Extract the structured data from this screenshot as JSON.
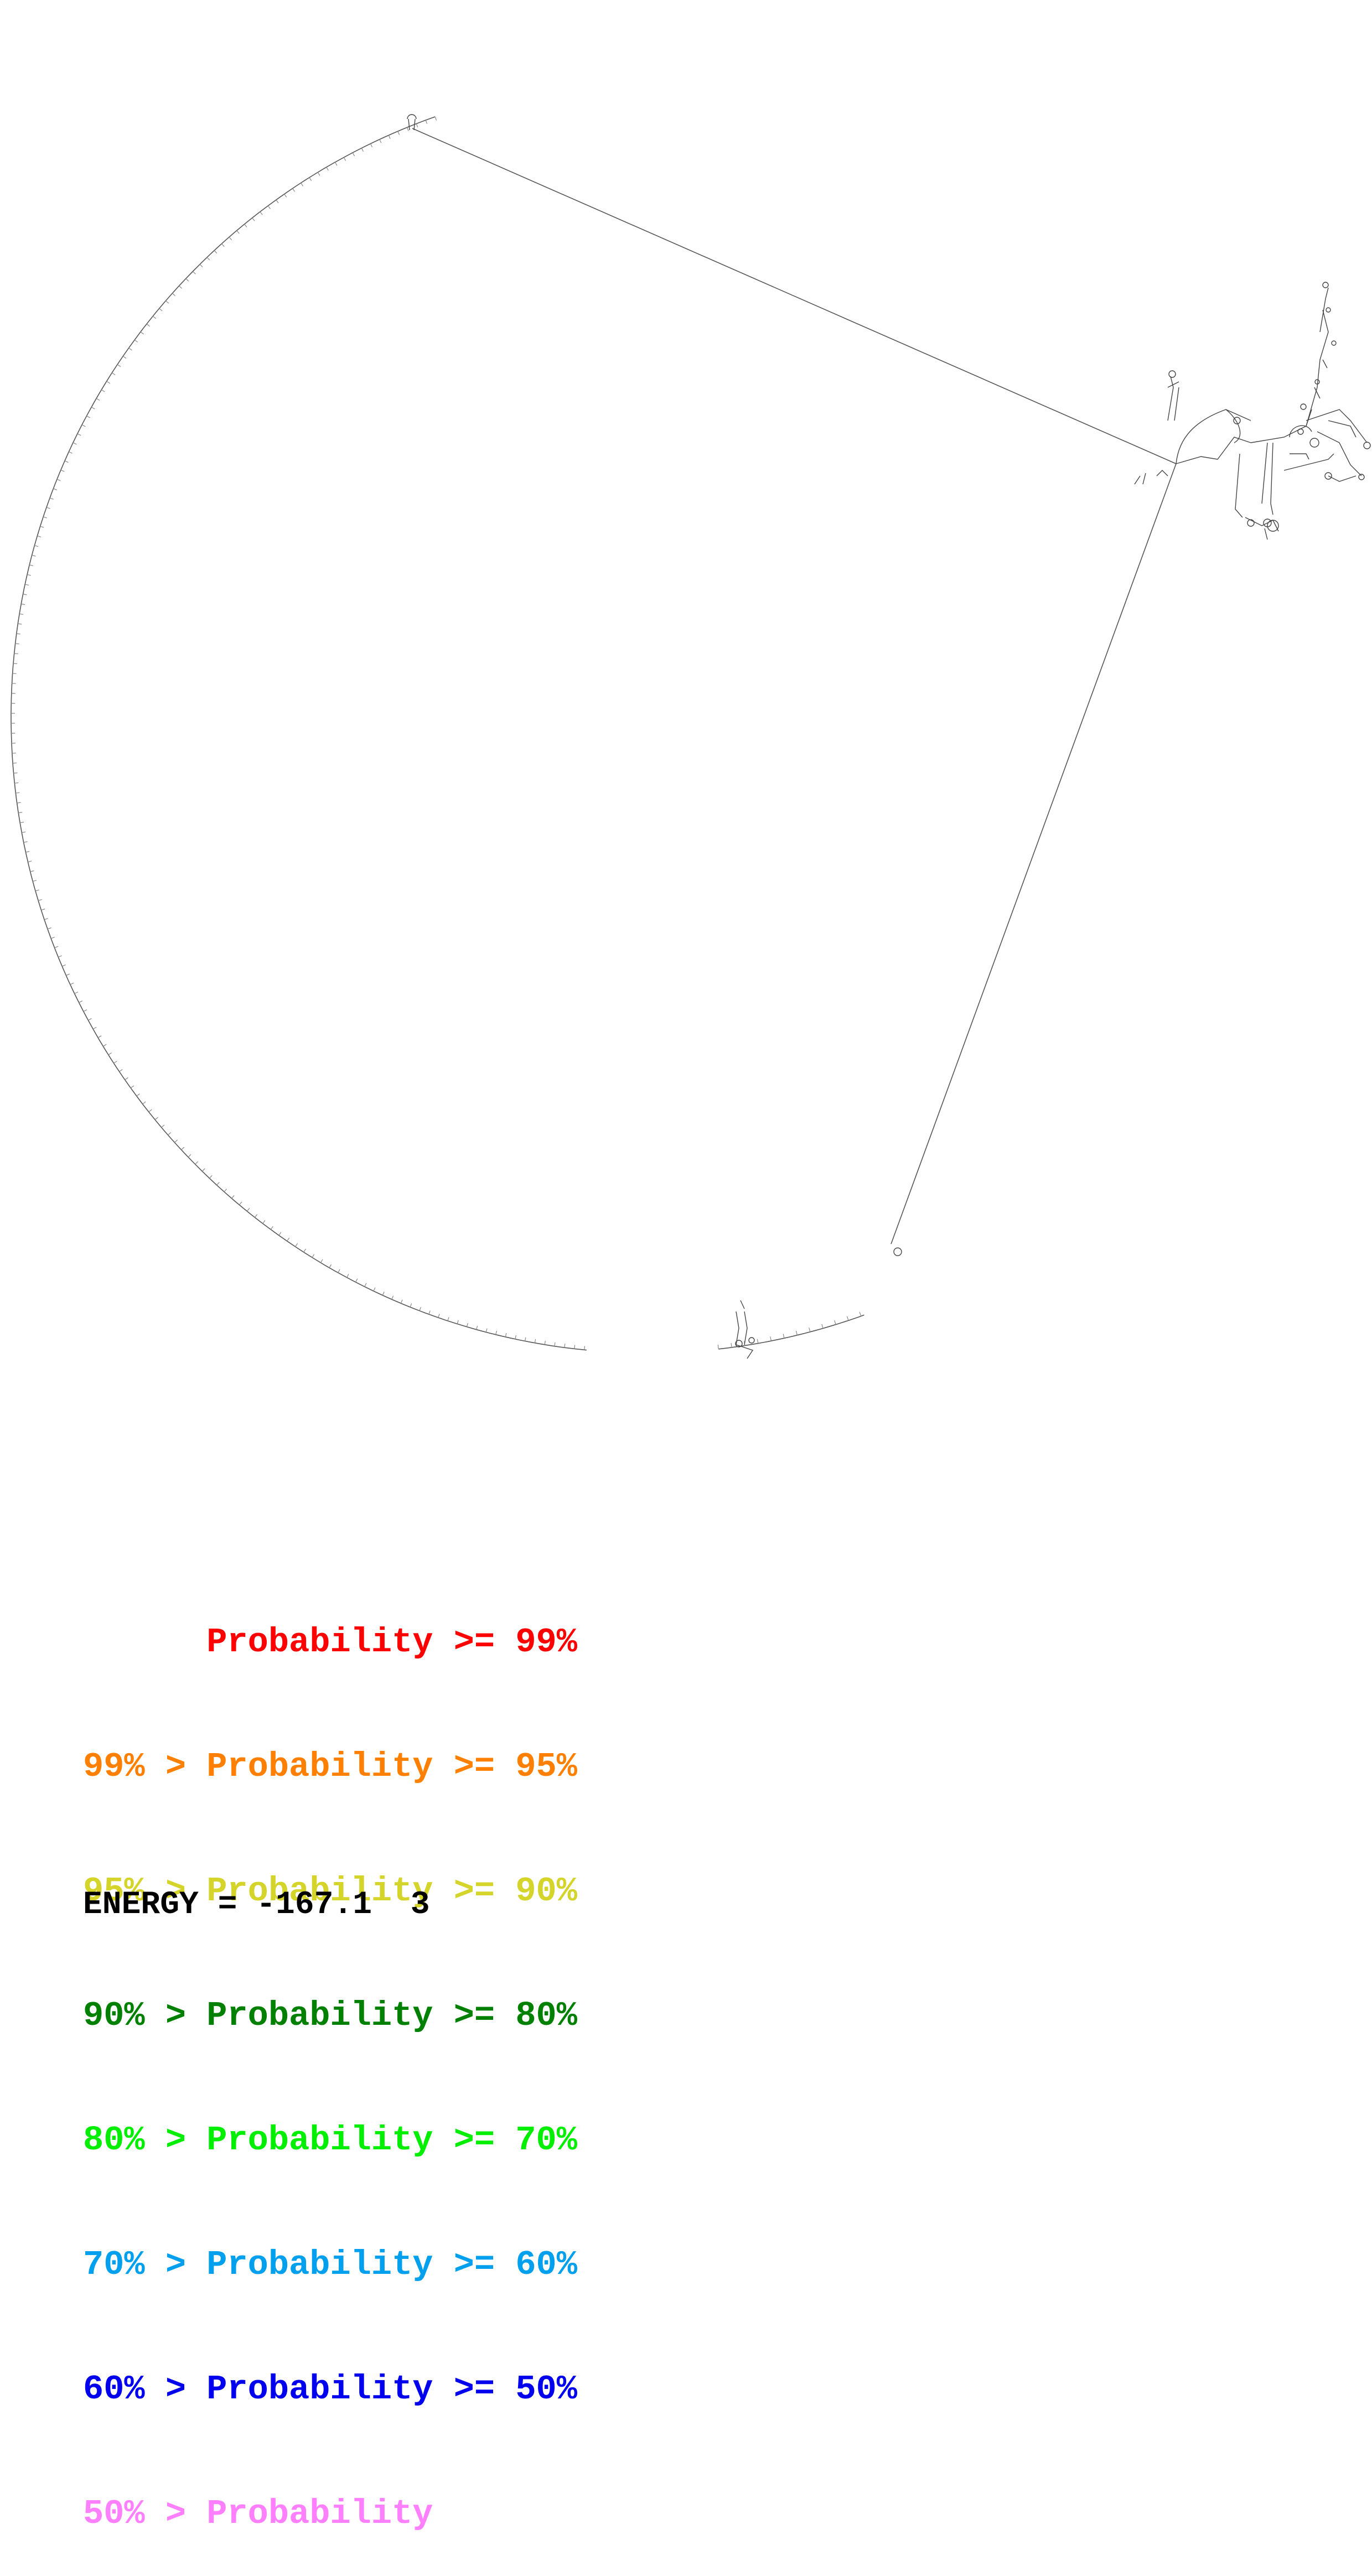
{
  "legend": {
    "rows": [
      {
        "text": "      Probability >= 99%",
        "color": "#ff0000"
      },
      {
        "text": "99% > Probability >= 95%",
        "color": "#ff8000"
      },
      {
        "text": "95% > Probability >= 90%",
        "color": "#d4d42a"
      },
      {
        "text": "90% > Probability >= 80%",
        "color": "#008000"
      },
      {
        "text": "80% > Probability >= 70%",
        "color": "#00ee00"
      },
      {
        "text": "70% > Probability >= 60%",
        "color": "#00a0ee"
      },
      {
        "text": "60% > Probability >= 50%",
        "color": "#0000ee"
      },
      {
        "text": "50% > Probability",
        "color": "#ff80ff"
      }
    ]
  },
  "energy": {
    "label": "ENERGY = -167.1  3"
  },
  "colors": {
    "backbone": "#555555",
    "tick": "#888888"
  }
}
